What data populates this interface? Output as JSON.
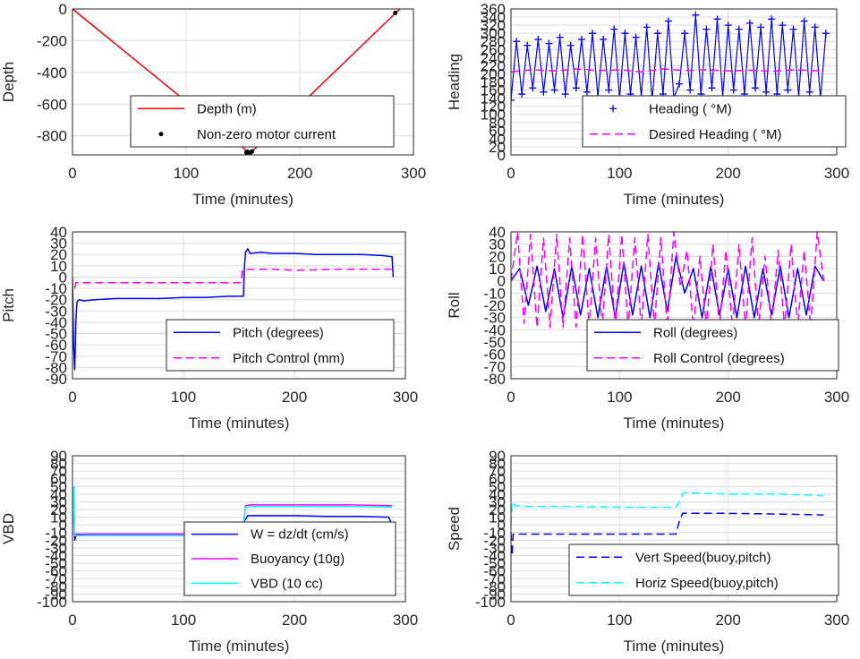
{
  "chart_data": [
    {
      "type": "line",
      "xlabel": "Time (minutes)",
      "ylabel": "Depth",
      "xlim": [
        0,
        300
      ],
      "ylim": [
        -920,
        0
      ],
      "xticks": [
        "0",
        "100",
        "200",
        "300"
      ],
      "yticks": [
        "0",
        "-200",
        "-400",
        "-600",
        "-800"
      ],
      "grid": true,
      "legend_position": "bottom-center",
      "series": [
        {
          "name": "Depth (m)",
          "style": "solid",
          "color": "#ff0000",
          "x": [
            0,
            155,
            157,
            288
          ],
          "y": [
            0,
            -905,
            -905,
            0
          ]
        },
        {
          "name": "Non-zero motor current",
          "style": "dots",
          "color": "#000000",
          "x": [
            153,
            154,
            156,
            157,
            158,
            284
          ],
          "y": [
            -905,
            -900,
            -905,
            -903,
            -898,
            -25
          ]
        }
      ]
    },
    {
      "type": "line",
      "xlabel": "Time (minutes)",
      "ylabel": "Heading",
      "xlim": [
        0,
        300
      ],
      "ylim": [
        0,
        360
      ],
      "xticks": [
        "0",
        "100",
        "200",
        "300"
      ],
      "yticks": [
        "0",
        "20",
        "40",
        "60",
        "80",
        "100",
        "120",
        "140",
        "160",
        "180",
        "200",
        "220",
        "240",
        "260",
        "280",
        "300",
        "320",
        "340",
        "360"
      ],
      "grid": true,
      "legend_position": "bottom-right",
      "series": [
        {
          "name": "Heading ( °M)",
          "style": "plus",
          "color": "#0000ff",
          "x": [
            0,
            5,
            10,
            15,
            20,
            25,
            30,
            35,
            40,
            45,
            50,
            55,
            60,
            65,
            70,
            75,
            80,
            85,
            90,
            95,
            100,
            105,
            110,
            115,
            120,
            125,
            130,
            135,
            140,
            145,
            150,
            155,
            160,
            165,
            170,
            175,
            180,
            185,
            190,
            195,
            200,
            205,
            210,
            215,
            220,
            225,
            230,
            235,
            240,
            245,
            250,
            255,
            260,
            265,
            270,
            275,
            280,
            285,
            290
          ],
          "y": [
            135,
            280,
            150,
            270,
            165,
            285,
            155,
            275,
            160,
            290,
            150,
            270,
            165,
            285,
            155,
            300,
            145,
            285,
            160,
            310,
            140,
            300,
            150,
            290,
            145,
            315,
            135,
            300,
            150,
            330,
            140,
            175,
            300,
            160,
            345,
            150,
            310,
            165,
            335,
            145,
            320,
            160,
            310,
            150,
            325,
            165,
            315,
            155,
            335,
            150,
            320,
            160,
            310,
            145,
            330,
            155,
            315,
            140,
            300
          ]
        },
        {
          "name": "Desired Heading ( °M)",
          "style": "dashed",
          "color": "#ff00ff",
          "x": [
            0,
            20,
            40,
            60,
            80,
            100,
            120,
            140,
            160,
            180,
            200,
            220,
            240,
            260,
            288
          ],
          "y": [
            205,
            210,
            207,
            212,
            208,
            210,
            205,
            212,
            208,
            210,
            207,
            209,
            206,
            210,
            207
          ]
        }
      ]
    },
    {
      "type": "line",
      "xlabel": "Time (minutes)",
      "ylabel": "Pitch",
      "xlim": [
        0,
        300
      ],
      "ylim": [
        -90,
        40
      ],
      "xticks": [
        "0",
        "100",
        "200",
        "300"
      ],
      "yticks": [
        "40",
        "30",
        "20",
        "10",
        "0",
        "-10",
        "-20",
        "-30",
        "-40",
        "-50",
        "-60",
        "-70",
        "-80",
        "-90"
      ],
      "grid": true,
      "legend_position": "bottom-right",
      "series": [
        {
          "name": "Pitch (degrees)",
          "style": "solid",
          "color": "#0000ff",
          "x": [
            0,
            1,
            2,
            3,
            4,
            6,
            10,
            20,
            40,
            60,
            80,
            100,
            120,
            140,
            152,
            154,
            155,
            156,
            158,
            160,
            170,
            180,
            200,
            220,
            240,
            260,
            280,
            288,
            289
          ],
          "y": [
            0,
            -60,
            -82,
            -40,
            -22,
            -20,
            -21,
            -20,
            -19,
            -19,
            -19,
            -18,
            -18,
            -17,
            -17,
            -17,
            10,
            22,
            25,
            21,
            22,
            21,
            21,
            20,
            20,
            20,
            19,
            18,
            0
          ]
        },
        {
          "name": "Pitch Control (mm)",
          "style": "dashed",
          "color": "#ff00ff",
          "x": [
            2,
            3,
            6,
            20,
            60,
            100,
            150,
            152,
            153,
            158,
            165,
            180,
            200,
            240,
            280,
            289
          ],
          "y": [
            -10,
            -5,
            -5,
            -5,
            -5,
            -5,
            -5,
            -5,
            6,
            7,
            7,
            7,
            6,
            7,
            7,
            7
          ]
        }
      ]
    },
    {
      "type": "line",
      "xlabel": "Time (minutes)",
      "ylabel": "Roll",
      "xlim": [
        0,
        300
      ],
      "ylim": [
        -80,
        40
      ],
      "xticks": [
        "0",
        "100",
        "200",
        "300"
      ],
      "yticks": [
        "40",
        "30",
        "20",
        "10",
        "0",
        "-10",
        "-20",
        "-30",
        "-40",
        "-50",
        "-60",
        "-70",
        "-80"
      ],
      "grid": true,
      "legend_position": "bottom-right",
      "series": [
        {
          "name": "Roll (degrees)",
          "style": "solid",
          "color": "#0000ff",
          "x": [
            0,
            8,
            16,
            24,
            32,
            40,
            48,
            56,
            64,
            72,
            80,
            88,
            96,
            104,
            112,
            120,
            128,
            136,
            144,
            152,
            160,
            168,
            176,
            184,
            192,
            200,
            208,
            216,
            224,
            232,
            240,
            248,
            256,
            264,
            272,
            280,
            288
          ],
          "y": [
            0,
            10,
            -20,
            12,
            -25,
            10,
            -30,
            12,
            -28,
            10,
            -30,
            12,
            -30,
            15,
            -28,
            12,
            -30,
            15,
            -25,
            20,
            -10,
            10,
            -30,
            12,
            -28,
            10,
            -30,
            12,
            -30,
            10,
            -28,
            12,
            -30,
            10,
            -28,
            12,
            0
          ]
        },
        {
          "name": "Roll Control (degrees)",
          "style": "dashed",
          "color": "#ff00ff",
          "x": [
            0,
            6,
            12,
            18,
            24,
            30,
            36,
            42,
            48,
            54,
            60,
            66,
            72,
            78,
            84,
            90,
            96,
            102,
            108,
            114,
            120,
            126,
            132,
            138,
            144,
            150,
            156,
            162,
            168,
            174,
            180,
            186,
            192,
            198,
            204,
            210,
            216,
            222,
            228,
            234,
            240,
            246,
            252,
            258,
            264,
            270,
            276,
            282,
            288
          ],
          "y": [
            0,
            40,
            -35,
            38,
            -38,
            35,
            -38,
            38,
            -38,
            35,
            -38,
            38,
            -38,
            35,
            -38,
            38,
            -38,
            38,
            -38,
            35,
            -38,
            38,
            -38,
            35,
            -38,
            40,
            -5,
            25,
            -38,
            20,
            -38,
            30,
            -38,
            25,
            -38,
            30,
            -38,
            35,
            -38,
            20,
            -38,
            25,
            -38,
            30,
            -38,
            25,
            -38,
            40,
            0
          ]
        }
      ]
    },
    {
      "type": "line",
      "xlabel": "Time (minutes)",
      "ylabel": "VBD",
      "xlim": [
        0,
        300
      ],
      "ylim": [
        -100,
        90
      ],
      "xticks": [
        "0",
        "100",
        "200",
        "300"
      ],
      "yticks": [
        "90",
        "80",
        "70",
        "60",
        "50",
        "40",
        "30",
        "20",
        "10",
        "0",
        "-10",
        "-20",
        "-30",
        "-40",
        "-50",
        "-60",
        "-70",
        "-80",
        "-90",
        "-100"
      ],
      "grid": true,
      "legend_position": "bottom-right",
      "series": [
        {
          "name": "W = dz/dt (cm/s)",
          "style": "solid",
          "color": "#0000ff",
          "x": [
            0,
            1,
            2,
            3,
            4,
            6,
            10,
            30,
            60,
            90,
            120,
            150,
            152,
            155,
            158,
            160,
            170,
            200,
            230,
            260,
            285,
            288
          ],
          "y": [
            0,
            40,
            -20,
            -15,
            -12,
            -13,
            -12,
            -12,
            -12,
            -12,
            -12,
            -12,
            -12,
            5,
            12,
            12,
            12,
            12,
            11,
            11,
            10,
            0
          ]
        },
        {
          "name": "Buoyancy (10g)",
          "style": "solid",
          "color": "#ff00ff",
          "x": [
            0,
            2,
            4,
            10,
            50,
            100,
            150,
            153,
            156,
            160,
            200,
            250,
            288
          ],
          "y": [
            -12,
            -12,
            -12,
            -12,
            -12,
            -12,
            -12,
            -12,
            25,
            26,
            26,
            26,
            25
          ]
        },
        {
          "name": "VBD (10 cc)",
          "style": "solid",
          "color": "#00ffff",
          "x": [
            0,
            1,
            2,
            4,
            10,
            50,
            100,
            150,
            153,
            156,
            160,
            200,
            250,
            288
          ],
          "y": [
            -10,
            50,
            -14,
            -14,
            -14,
            -14,
            -14,
            -14,
            -14,
            23,
            24,
            24,
            24,
            23
          ]
        }
      ]
    },
    {
      "type": "line",
      "xlabel": "Time (minutes)",
      "ylabel": "Speed",
      "xlim": [
        0,
        300
      ],
      "ylim": [
        -100,
        90
      ],
      "xticks": [
        "0",
        "100",
        "200",
        "300"
      ],
      "yticks": [
        "90",
        "80",
        "70",
        "60",
        "50",
        "40",
        "30",
        "20",
        "10",
        "0",
        "-10",
        "-20",
        "-30",
        "-40",
        "-50",
        "-60",
        "-70",
        "-80",
        "-90",
        "-100"
      ],
      "grid": true,
      "legend_position": "bottom-right",
      "series": [
        {
          "name": "Vert Speed(buoy,pitch)",
          "style": "dashed",
          "color": "#0000ff",
          "x": [
            0,
            1,
            2,
            4,
            10,
            50,
            100,
            150,
            152,
            155,
            158,
            160,
            200,
            250,
            288
          ],
          "y": [
            -10,
            -40,
            -12,
            -12,
            -12,
            -12,
            -12,
            -12,
            -12,
            5,
            15,
            15,
            15,
            14,
            13
          ]
        },
        {
          "name": "Horiz Speed(buoy,pitch)",
          "style": "dashed",
          "color": "#00ffff",
          "x": [
            0,
            1,
            2,
            4,
            10,
            50,
            100,
            150,
            152,
            155,
            158,
            160,
            200,
            250,
            288
          ],
          "y": [
            0,
            30,
            28,
            25,
            24,
            24,
            23,
            23,
            23,
            30,
            40,
            42,
            40,
            40,
            38
          ]
        }
      ]
    }
  ]
}
